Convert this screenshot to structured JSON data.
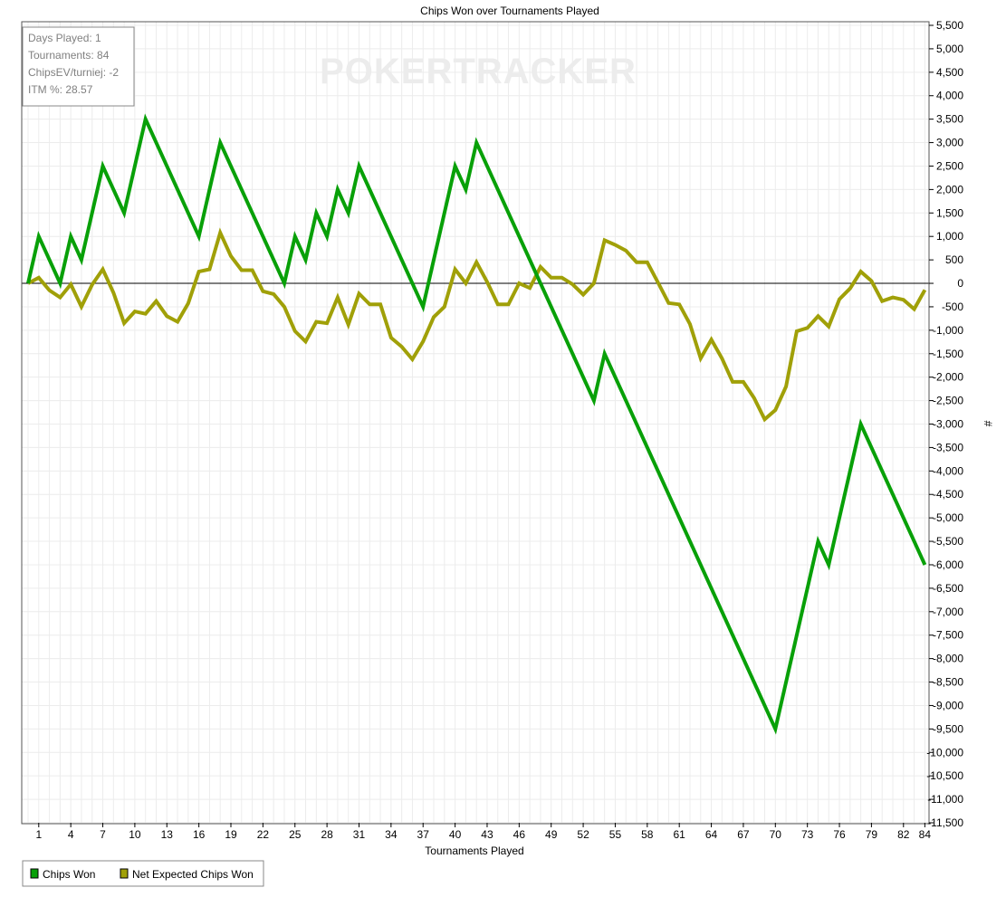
{
  "chart_data": {
    "type": "line",
    "title": "Chips Won over Tournaments Played",
    "xlabel": "Tournaments Played",
    "ylabel": "#",
    "xlim": [
      0,
      84
    ],
    "ylim": [
      -11500,
      5500
    ],
    "y_ticks": [
      5500,
      5000,
      4500,
      4000,
      3500,
      3000,
      2500,
      2000,
      1500,
      1000,
      500,
      0,
      -500,
      -1000,
      -1500,
      -2000,
      -2500,
      -3000,
      -3500,
      -4000,
      -4500,
      -5000,
      -5500,
      -6000,
      -6500,
      -7000,
      -7500,
      -8000,
      -8500,
      -9000,
      -9500,
      -10000,
      -10500,
      -11000,
      -11500
    ],
    "y_tick_labels": [
      "5,500",
      "5,000",
      "4,500",
      "4,000",
      "3,500",
      "3,000",
      "2,500",
      "2,000",
      "1,500",
      "1,000",
      "500",
      "0",
      "-500",
      "-1,000",
      "-1,500",
      "-2,000",
      "-2,500",
      "-3,000",
      "-3,500",
      "-4,000",
      "-4,500",
      "-5,000",
      "-5,500",
      "-6,000",
      "-6,500",
      "-7,000",
      "-7,500",
      "-8,000",
      "-8,500",
      "-9,000",
      "-9,500",
      "-10,000",
      "-10,500",
      "-11,000",
      "-11,500"
    ],
    "x_ticks": [
      1,
      4,
      7,
      10,
      13,
      16,
      19,
      22,
      25,
      28,
      31,
      34,
      37,
      40,
      43,
      46,
      49,
      52,
      55,
      58,
      61,
      64,
      67,
      70,
      73,
      76,
      79,
      82,
      84
    ],
    "x_tick_labels": [
      "1",
      "4",
      "7",
      "10",
      "13",
      "16",
      "19",
      "22",
      "25",
      "28",
      "31",
      "34",
      "37",
      "40",
      "43",
      "46",
      "49",
      "52",
      "55",
      "58",
      "61",
      "64",
      "67",
      "70",
      "73",
      "76",
      "79",
      "82",
      "84"
    ],
    "grid": true,
    "legend_position": "bottom-left",
    "series": [
      {
        "name": "Chips Won",
        "color": "#08a008",
        "x": [
          0,
          1,
          2,
          3,
          4,
          5,
          7,
          9,
          11,
          16,
          18,
          24,
          25,
          26,
          27,
          28,
          29,
          30,
          31,
          37,
          40,
          41,
          42,
          53,
          54,
          70,
          74,
          75,
          78,
          84
        ],
        "y": [
          0,
          1000,
          500,
          0,
          1000,
          500,
          2500,
          1500,
          3500,
          1000,
          3000,
          0,
          1000,
          500,
          1500,
          1000,
          2000,
          1500,
          2500,
          -500,
          2500,
          2000,
          3000,
          -2500,
          -1500,
          -9500,
          -5500,
          -6000,
          -3000,
          -6000
        ]
      },
      {
        "name": "Net Expected Chips Won",
        "color": "#a0a008",
        "x": [
          0,
          1,
          2,
          3,
          4,
          5,
          6,
          7,
          8,
          9,
          10,
          11,
          12,
          13,
          14,
          15,
          16,
          17,
          18,
          19,
          20,
          21,
          22,
          23,
          24,
          25,
          26,
          27,
          28,
          29,
          30,
          31,
          32,
          33,
          34,
          35,
          36,
          37,
          38,
          39,
          40,
          41,
          42,
          43,
          44,
          45,
          46,
          47,
          48,
          49,
          50,
          51,
          52,
          53,
          54,
          55,
          56,
          57,
          58,
          59,
          60,
          61,
          62,
          63,
          64,
          65,
          66,
          67,
          68,
          69,
          70,
          71,
          72,
          73,
          74,
          75,
          76,
          77,
          78,
          79,
          80,
          81,
          82,
          83,
          84
        ],
        "y": [
          0,
          120,
          -150,
          -300,
          -20,
          -500,
          -30,
          300,
          -200,
          -850,
          -600,
          -650,
          -380,
          -700,
          -820,
          -430,
          250,
          300,
          1080,
          580,
          280,
          280,
          -170,
          -230,
          -500,
          -1020,
          -1240,
          -820,
          -850,
          -300,
          -880,
          -220,
          -450,
          -450,
          -1160,
          -1350,
          -1620,
          -1240,
          -720,
          -500,
          300,
          0,
          450,
          30,
          -450,
          -450,
          0,
          -100,
          350,
          120,
          120,
          -20,
          -240,
          0,
          920,
          820,
          700,
          450,
          450,
          20,
          -420,
          -450,
          -870,
          -1600,
          -1200,
          -1600,
          -2100,
          -2100,
          -2440,
          -2900,
          -2700,
          -2200,
          -1020,
          -950,
          -700,
          -920,
          -340,
          -110,
          250,
          50,
          -380,
          -300,
          -350,
          -550,
          -140
        ]
      }
    ],
    "info_box": [
      "Days Played: 1",
      "Tournaments: 84",
      "ChipsEV/turniej: -2",
      "ITM %: 28.57"
    ],
    "watermark": "POKERTRACKER"
  }
}
